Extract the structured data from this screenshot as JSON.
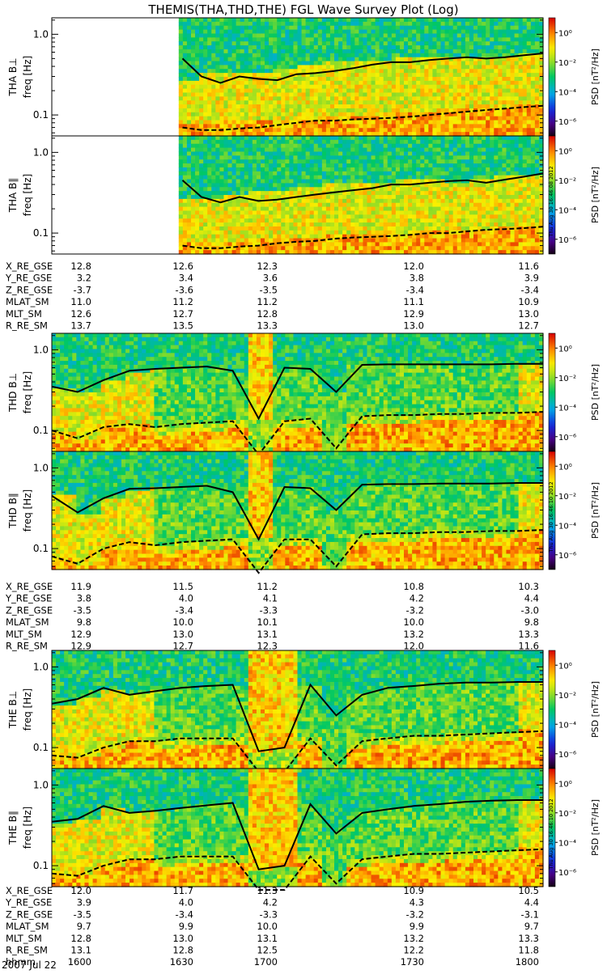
{
  "title": "THEMIS(THA,THD,THE) FGL Wave Survey Plot (Log)",
  "date_label": "2007 Jul 22",
  "colors": {
    "frame": "#000000",
    "background": "#ffffff"
  },
  "chart_data": {
    "type": "heatmap",
    "title": "THEMIS(THA,THD,THE) FGL Wave Survey Plot (Log)",
    "time_ticks": [
      "1600",
      "1630",
      "1700",
      "1730",
      "1800"
    ],
    "freq_ticks": [
      "0.1",
      "1.0"
    ],
    "ylim_hz": [
      0.055,
      1.6
    ],
    "yscale": "log",
    "colorbar": {
      "label": "PSD [nT²/Hz]",
      "ticks": [
        "10⁰",
        "10⁻²",
        "10⁻⁴",
        "10⁻⁶"
      ],
      "range_log10": [
        -7,
        1
      ]
    },
    "stamp": "Thu Aug 30 16:46:08 2012",
    "stamps": [
      "Thu Aug 30 16:46:08 2012",
      "Thu Aug 30 16:46:10 2012",
      "Thu Aug 30 16:46:10 2012"
    ],
    "panels": [
      {
        "probe": "THA",
        "comp": "B⊥",
        "ylabel": "freq [Hz]",
        "data_start_frac": 0.266,
        "solid": [
          0.5,
          0.3,
          0.25,
          0.3,
          0.28,
          0.27,
          0.32,
          0.33,
          0.35,
          0.38,
          0.42,
          0.45,
          0.45,
          0.48,
          0.5,
          0.52,
          0.5,
          0.52,
          0.55,
          0.58
        ],
        "dashed": [
          0.07,
          0.065,
          0.065,
          0.068,
          0.07,
          0.075,
          0.08,
          0.085,
          0.085,
          0.088,
          0.09,
          0.092,
          0.095,
          0.1,
          0.105,
          0.11,
          0.115,
          0.12,
          0.125,
          0.13
        ]
      },
      {
        "probe": "THA",
        "comp": "B∥",
        "ylabel": "freq [Hz]",
        "data_start_frac": 0.266,
        "solid": [
          0.45,
          0.28,
          0.24,
          0.28,
          0.25,
          0.26,
          0.28,
          0.3,
          0.32,
          0.34,
          0.36,
          0.4,
          0.4,
          0.42,
          0.44,
          0.45,
          0.42,
          0.46,
          0.5,
          0.55
        ],
        "dashed": [
          0.07,
          0.065,
          0.065,
          0.068,
          0.07,
          0.075,
          0.078,
          0.08,
          0.085,
          0.088,
          0.09,
          0.092,
          0.095,
          0.1,
          0.1,
          0.105,
          0.11,
          0.112,
          0.115,
          0.12
        ]
      },
      {
        "probe": "THD",
        "comp": "B⊥",
        "ylabel": "freq [Hz]",
        "data_start_frac": 0.0,
        "solid": [
          0.35,
          0.3,
          0.42,
          0.55,
          0.58,
          0.6,
          0.62,
          0.55,
          0.14,
          0.6,
          0.58,
          0.3,
          0.65,
          0.66,
          0.66,
          0.66,
          0.66,
          0.66,
          0.67,
          0.67
        ],
        "dashed": [
          0.1,
          0.08,
          0.11,
          0.12,
          0.11,
          0.12,
          0.125,
          0.13,
          0.05,
          0.13,
          0.14,
          0.06,
          0.15,
          0.155,
          0.155,
          0.16,
          0.16,
          0.165,
          0.165,
          0.17
        ]
      },
      {
        "probe": "THD",
        "comp": "B∥",
        "ylabel": "freq [Hz]",
        "data_start_frac": 0.0,
        "solid": [
          0.45,
          0.28,
          0.42,
          0.55,
          0.56,
          0.58,
          0.6,
          0.5,
          0.13,
          0.58,
          0.56,
          0.3,
          0.62,
          0.63,
          0.63,
          0.64,
          0.64,
          0.64,
          0.65,
          0.65
        ],
        "dashed": [
          0.08,
          0.065,
          0.1,
          0.12,
          0.11,
          0.12,
          0.125,
          0.13,
          0.05,
          0.13,
          0.13,
          0.06,
          0.15,
          0.155,
          0.155,
          0.16,
          0.16,
          0.165,
          0.165,
          0.17
        ]
      },
      {
        "probe": "THE",
        "comp": "B⊥",
        "ylabel": "freq [Hz]",
        "data_start_frac": 0.0,
        "solid": [
          0.35,
          0.4,
          0.55,
          0.45,
          0.5,
          0.55,
          0.58,
          0.6,
          0.09,
          0.1,
          0.6,
          0.25,
          0.45,
          0.55,
          0.58,
          0.62,
          0.64,
          0.64,
          0.65,
          0.65
        ],
        "dashed": [
          0.08,
          0.075,
          0.1,
          0.12,
          0.12,
          0.13,
          0.13,
          0.13,
          0.05,
          0.05,
          0.13,
          0.06,
          0.12,
          0.13,
          0.14,
          0.14,
          0.145,
          0.15,
          0.155,
          0.16
        ]
      },
      {
        "probe": "THE",
        "comp": "B∥",
        "ylabel": "freq [Hz]",
        "data_start_frac": 0.0,
        "solid": [
          0.35,
          0.38,
          0.55,
          0.45,
          0.48,
          0.52,
          0.56,
          0.6,
          0.09,
          0.1,
          0.58,
          0.25,
          0.45,
          0.5,
          0.55,
          0.58,
          0.62,
          0.64,
          0.65,
          0.65
        ],
        "dashed": [
          0.08,
          0.075,
          0.1,
          0.12,
          0.12,
          0.13,
          0.13,
          0.13,
          0.05,
          0.05,
          0.13,
          0.06,
          0.12,
          0.13,
          0.14,
          0.14,
          0.145,
          0.15,
          0.155,
          0.16
        ]
      }
    ],
    "ephemeris": [
      {
        "rows": [
          {
            "name": "X_RE_GSE",
            "values": [
              "12.8",
              "12.6",
              "12.3",
              "12.0",
              "11.6"
            ]
          },
          {
            "name": "Y_RE_GSE",
            "values": [
              "3.2",
              "3.4",
              "3.6",
              "3.8",
              "3.9"
            ]
          },
          {
            "name": "Z_RE_GSE",
            "values": [
              "-3.7",
              "-3.6",
              "-3.5",
              "-3.4",
              "-3.4"
            ]
          },
          {
            "name": "MLAT_SM",
            "values": [
              "11.0",
              "11.2",
              "11.2",
              "11.1",
              "10.9"
            ]
          },
          {
            "name": "MLT_SM",
            "values": [
              "12.6",
              "12.7",
              "12.8",
              "12.9",
              "13.0"
            ]
          },
          {
            "name": "R_RE_SM",
            "values": [
              "13.7",
              "13.5",
              "13.3",
              "13.0",
              "12.7"
            ]
          }
        ]
      },
      {
        "rows": [
          {
            "name": "X_RE_GSE",
            "values": [
              "11.9",
              "11.5",
              "11.2",
              "10.8",
              "10.3"
            ]
          },
          {
            "name": "Y_RE_GSE",
            "values": [
              "3.8",
              "4.0",
              "4.1",
              "4.2",
              "4.4"
            ]
          },
          {
            "name": "Z_RE_GSE",
            "values": [
              "-3.5",
              "-3.4",
              "-3.3",
              "-3.2",
              "-3.0"
            ]
          },
          {
            "name": "MLAT_SM",
            "values": [
              "9.8",
              "10.0",
              "10.1",
              "10.0",
              "9.8"
            ]
          },
          {
            "name": "MLT_SM",
            "values": [
              "12.9",
              "13.0",
              "13.1",
              "13.2",
              "13.3"
            ]
          },
          {
            "name": "R_RE_SM",
            "values": [
              "12.9",
              "12.7",
              "12.3",
              "12.0",
              "11.6"
            ]
          }
        ]
      },
      {
        "rows": [
          {
            "name": "X_RE_GSE",
            "values": [
              "12.0",
              "11.7",
              "11.3",
              "10.9",
              "10.5"
            ]
          },
          {
            "name": "Y_RE_GSE",
            "values": [
              "3.9",
              "4.0",
              "4.2",
              "4.3",
              "4.4"
            ]
          },
          {
            "name": "Z_RE_GSE",
            "values": [
              "-3.5",
              "-3.4",
              "-3.3",
              "-3.2",
              "-3.1"
            ]
          },
          {
            "name": "MLAT_SM",
            "values": [
              "9.7",
              "9.9",
              "10.0",
              "9.9",
              "9.7"
            ]
          },
          {
            "name": "MLT_SM",
            "values": [
              "12.8",
              "13.0",
              "13.1",
              "13.2",
              "13.3"
            ]
          },
          {
            "name": "R_RE_SM",
            "values": [
              "13.1",
              "12.8",
              "12.5",
              "12.2",
              "11.8"
            ]
          },
          {
            "name": "hhmm",
            "values": [
              "1600",
              "1630",
              "1700",
              "1730",
              "1800"
            ]
          }
        ]
      }
    ]
  }
}
